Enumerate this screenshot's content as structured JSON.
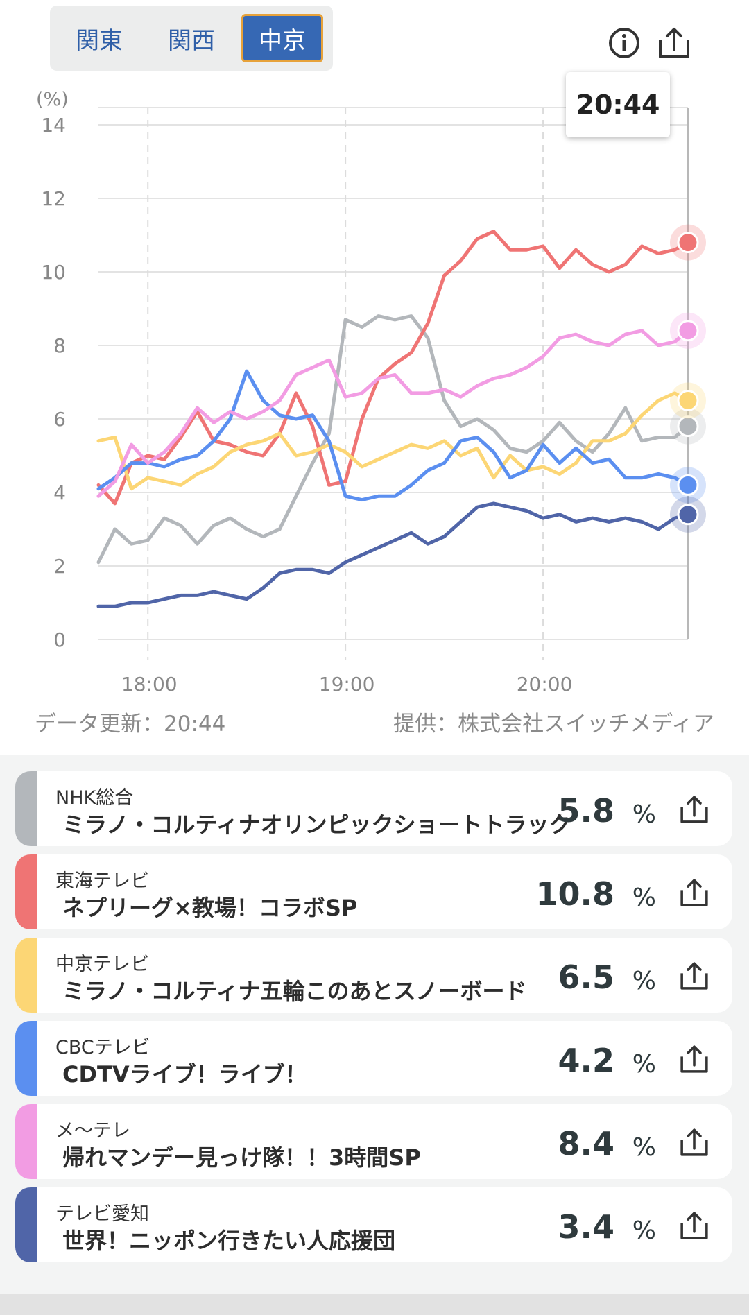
{
  "region_tabs": [
    {
      "label": "関東",
      "active": false
    },
    {
      "label": "関西",
      "active": false
    },
    {
      "label": "中京",
      "active": true
    }
  ],
  "header": {
    "info_icon": "info-icon",
    "share_icon": "share-icon"
  },
  "tooltip_time": "20:44",
  "colors": {
    "accent": "#3668b4",
    "tab_border": "#e7a23a"
  },
  "chart_data": {
    "type": "line",
    "ylabel": "(%)",
    "ylim": [
      0,
      14
    ],
    "yticks": [
      0,
      2,
      4,
      6,
      8,
      10,
      12,
      14
    ],
    "x_range": [
      "17:45",
      "20:44"
    ],
    "xticks": [
      {
        "time": "18:00",
        "label": "18:00"
      },
      {
        "time": "19:00",
        "label": "19:00"
      },
      {
        "time": "20:00",
        "label": "20:00"
      }
    ],
    "grid": true,
    "cursor_time": "20:44",
    "series": [
      {
        "name": "NHK総合",
        "color": "#b3b7bb",
        "points": [
          [
            "17:45",
            2.1
          ],
          [
            "17:50",
            3.0
          ],
          [
            "17:55",
            2.6
          ],
          [
            "18:00",
            2.7
          ],
          [
            "18:05",
            3.3
          ],
          [
            "18:10",
            3.1
          ],
          [
            "18:15",
            2.6
          ],
          [
            "18:20",
            3.1
          ],
          [
            "18:25",
            3.3
          ],
          [
            "18:30",
            3.0
          ],
          [
            "18:35",
            2.8
          ],
          [
            "18:40",
            3.0
          ],
          [
            "18:45",
            3.9
          ],
          [
            "18:50",
            4.8
          ],
          [
            "18:55",
            5.6
          ],
          [
            "19:00",
            8.7
          ],
          [
            "19:05",
            8.5
          ],
          [
            "19:10",
            8.8
          ],
          [
            "19:15",
            8.7
          ],
          [
            "19:20",
            8.8
          ],
          [
            "19:25",
            8.2
          ],
          [
            "19:30",
            6.5
          ],
          [
            "19:35",
            5.8
          ],
          [
            "19:40",
            6.0
          ],
          [
            "19:45",
            5.7
          ],
          [
            "19:50",
            5.2
          ],
          [
            "19:55",
            5.1
          ],
          [
            "20:00",
            5.4
          ],
          [
            "20:05",
            5.9
          ],
          [
            "20:10",
            5.4
          ],
          [
            "20:15",
            5.1
          ],
          [
            "20:20",
            5.6
          ],
          [
            "20:25",
            6.3
          ],
          [
            "20:30",
            5.4
          ],
          [
            "20:35",
            5.5
          ],
          [
            "20:40",
            5.5
          ],
          [
            "20:44",
            5.8
          ]
        ]
      },
      {
        "name": "東海テレビ",
        "color": "#ef7474",
        "points": [
          [
            "17:45",
            4.2
          ],
          [
            "17:50",
            3.7
          ],
          [
            "17:55",
            4.8
          ],
          [
            "18:00",
            5.0
          ],
          [
            "18:05",
            4.9
          ],
          [
            "18:10",
            5.5
          ],
          [
            "18:15",
            6.2
          ],
          [
            "18:20",
            5.4
          ],
          [
            "18:25",
            5.3
          ],
          [
            "18:30",
            5.1
          ],
          [
            "18:35",
            5.0
          ],
          [
            "18:40",
            5.6
          ],
          [
            "18:45",
            6.7
          ],
          [
            "18:50",
            5.8
          ],
          [
            "18:55",
            4.2
          ],
          [
            "19:00",
            4.3
          ],
          [
            "19:05",
            6.0
          ],
          [
            "19:10",
            7.1
          ],
          [
            "19:15",
            7.5
          ],
          [
            "19:20",
            7.8
          ],
          [
            "19:25",
            8.6
          ],
          [
            "19:30",
            9.9
          ],
          [
            "19:35",
            10.3
          ],
          [
            "19:40",
            10.9
          ],
          [
            "19:45",
            11.1
          ],
          [
            "19:50",
            10.6
          ],
          [
            "19:55",
            10.6
          ],
          [
            "20:00",
            10.7
          ],
          [
            "20:05",
            10.1
          ],
          [
            "20:10",
            10.6
          ],
          [
            "20:15",
            10.2
          ],
          [
            "20:20",
            10.0
          ],
          [
            "20:25",
            10.2
          ],
          [
            "20:30",
            10.7
          ],
          [
            "20:35",
            10.5
          ],
          [
            "20:40",
            10.6
          ],
          [
            "20:44",
            10.8
          ]
        ]
      },
      {
        "name": "中京テレビ",
        "color": "#fcd675",
        "points": [
          [
            "17:45",
            5.4
          ],
          [
            "17:50",
            5.5
          ],
          [
            "17:55",
            4.1
          ],
          [
            "18:00",
            4.4
          ],
          [
            "18:05",
            4.3
          ],
          [
            "18:10",
            4.2
          ],
          [
            "18:15",
            4.5
          ],
          [
            "18:20",
            4.7
          ],
          [
            "18:25",
            5.1
          ],
          [
            "18:30",
            5.3
          ],
          [
            "18:35",
            5.4
          ],
          [
            "18:40",
            5.6
          ],
          [
            "18:45",
            5.0
          ],
          [
            "18:50",
            5.1
          ],
          [
            "18:55",
            5.3
          ],
          [
            "19:00",
            5.1
          ],
          [
            "19:05",
            4.7
          ],
          [
            "19:10",
            4.9
          ],
          [
            "19:15",
            5.1
          ],
          [
            "19:20",
            5.3
          ],
          [
            "19:25",
            5.2
          ],
          [
            "19:30",
            5.4
          ],
          [
            "19:35",
            5.0
          ],
          [
            "19:40",
            5.2
          ],
          [
            "19:45",
            4.4
          ],
          [
            "19:50",
            5.0
          ],
          [
            "19:55",
            4.6
          ],
          [
            "20:00",
            4.7
          ],
          [
            "20:05",
            4.5
          ],
          [
            "20:10",
            4.8
          ],
          [
            "20:15",
            5.4
          ],
          [
            "20:20",
            5.4
          ],
          [
            "20:25",
            5.6
          ],
          [
            "20:30",
            6.1
          ],
          [
            "20:35",
            6.5
          ],
          [
            "20:40",
            6.7
          ],
          [
            "20:44",
            6.5
          ]
        ]
      },
      {
        "name": "CBCテレビ",
        "color": "#5b8ff0",
        "points": [
          [
            "17:45",
            4.1
          ],
          [
            "17:50",
            4.4
          ],
          [
            "17:55",
            4.8
          ],
          [
            "18:00",
            4.8
          ],
          [
            "18:05",
            4.7
          ],
          [
            "18:10",
            4.9
          ],
          [
            "18:15",
            5.0
          ],
          [
            "18:20",
            5.4
          ],
          [
            "18:25",
            6.0
          ],
          [
            "18:30",
            7.3
          ],
          [
            "18:35",
            6.5
          ],
          [
            "18:40",
            6.1
          ],
          [
            "18:45",
            6.0
          ],
          [
            "18:50",
            6.1
          ],
          [
            "18:55",
            5.4
          ],
          [
            "19:00",
            3.9
          ],
          [
            "19:05",
            3.8
          ],
          [
            "19:10",
            3.9
          ],
          [
            "19:15",
            3.9
          ],
          [
            "19:20",
            4.2
          ],
          [
            "19:25",
            4.6
          ],
          [
            "19:30",
            4.8
          ],
          [
            "19:35",
            5.4
          ],
          [
            "19:40",
            5.5
          ],
          [
            "19:45",
            5.1
          ],
          [
            "19:50",
            4.4
          ],
          [
            "19:55",
            4.6
          ],
          [
            "20:00",
            5.3
          ],
          [
            "20:05",
            4.8
          ],
          [
            "20:10",
            5.2
          ],
          [
            "20:15",
            4.8
          ],
          [
            "20:20",
            4.9
          ],
          [
            "20:25",
            4.4
          ],
          [
            "20:30",
            4.4
          ],
          [
            "20:35",
            4.5
          ],
          [
            "20:40",
            4.4
          ],
          [
            "20:44",
            4.2
          ]
        ]
      },
      {
        "name": "メ〜テレ",
        "color": "#f29ce3",
        "points": [
          [
            "17:45",
            3.9
          ],
          [
            "17:50",
            4.3
          ],
          [
            "17:55",
            5.3
          ],
          [
            "18:00",
            4.8
          ],
          [
            "18:05",
            5.1
          ],
          [
            "18:10",
            5.6
          ],
          [
            "18:15",
            6.3
          ],
          [
            "18:20",
            5.9
          ],
          [
            "18:25",
            6.2
          ],
          [
            "18:30",
            6.0
          ],
          [
            "18:35",
            6.2
          ],
          [
            "18:40",
            6.5
          ],
          [
            "18:45",
            7.2
          ],
          [
            "18:50",
            7.4
          ],
          [
            "18:55",
            7.6
          ],
          [
            "19:00",
            6.6
          ],
          [
            "19:05",
            6.7
          ],
          [
            "19:10",
            7.1
          ],
          [
            "19:15",
            7.2
          ],
          [
            "19:20",
            6.7
          ],
          [
            "19:25",
            6.7
          ],
          [
            "19:30",
            6.8
          ],
          [
            "19:35",
            6.6
          ],
          [
            "19:40",
            6.9
          ],
          [
            "19:45",
            7.1
          ],
          [
            "19:50",
            7.2
          ],
          [
            "19:55",
            7.4
          ],
          [
            "20:00",
            7.7
          ],
          [
            "20:05",
            8.2
          ],
          [
            "20:10",
            8.3
          ],
          [
            "20:15",
            8.1
          ],
          [
            "20:20",
            8.0
          ],
          [
            "20:25",
            8.3
          ],
          [
            "20:30",
            8.4
          ],
          [
            "20:35",
            8.0
          ],
          [
            "20:40",
            8.1
          ],
          [
            "20:44",
            8.4
          ]
        ]
      },
      {
        "name": "テレビ愛知",
        "color": "#5065a8",
        "points": [
          [
            "17:45",
            0.9
          ],
          [
            "17:50",
            0.9
          ],
          [
            "17:55",
            1.0
          ],
          [
            "18:00",
            1.0
          ],
          [
            "18:05",
            1.1
          ],
          [
            "18:10",
            1.2
          ],
          [
            "18:15",
            1.2
          ],
          [
            "18:20",
            1.3
          ],
          [
            "18:25",
            1.2
          ],
          [
            "18:30",
            1.1
          ],
          [
            "18:35",
            1.4
          ],
          [
            "18:40",
            1.8
          ],
          [
            "18:45",
            1.9
          ],
          [
            "18:50",
            1.9
          ],
          [
            "18:55",
            1.8
          ],
          [
            "19:00",
            2.1
          ],
          [
            "19:05",
            2.3
          ],
          [
            "19:10",
            2.5
          ],
          [
            "19:15",
            2.7
          ],
          [
            "19:20",
            2.9
          ],
          [
            "19:25",
            2.6
          ],
          [
            "19:30",
            2.8
          ],
          [
            "19:35",
            3.2
          ],
          [
            "19:40",
            3.6
          ],
          [
            "19:45",
            3.7
          ],
          [
            "19:50",
            3.6
          ],
          [
            "19:55",
            3.5
          ],
          [
            "20:00",
            3.3
          ],
          [
            "20:05",
            3.4
          ],
          [
            "20:10",
            3.2
          ],
          [
            "20:15",
            3.3
          ],
          [
            "20:20",
            3.2
          ],
          [
            "20:25",
            3.3
          ],
          [
            "20:30",
            3.2
          ],
          [
            "20:35",
            3.0
          ],
          [
            "20:40",
            3.3
          ],
          [
            "20:44",
            3.4
          ]
        ]
      }
    ]
  },
  "update_label": "データ更新：20:44",
  "source_label": "提供：株式会社スイッチメディア",
  "ratings": [
    {
      "channel": "NHK総合",
      "program": "ミラノ・コルティナオリンピックショートトラック",
      "value": "5.8",
      "unit": "%",
      "color": "#b3b7bb"
    },
    {
      "channel": "東海テレビ",
      "program": "ネプリーグ×教場！コラボSP",
      "value": "10.8",
      "unit": "%",
      "color": "#ef7474"
    },
    {
      "channel": "中京テレビ",
      "program": "ミラノ・コルティナ五輪このあとスノーボード",
      "value": "6.5",
      "unit": "%",
      "color": "#fcd675"
    },
    {
      "channel": "CBCテレビ",
      "program": "CDTVライブ！ライブ！",
      "value": "4.2",
      "unit": "%",
      "color": "#5b8ff0"
    },
    {
      "channel": "メ〜テレ",
      "program": "帰れマンデー見っけ隊！！3時間SP",
      "value": "8.4",
      "unit": "%",
      "color": "#f29ce3"
    },
    {
      "channel": "テレビ愛知",
      "program": "世界！ニッポン行きたい人応援団",
      "value": "3.4",
      "unit": "%",
      "color": "#5065a8"
    }
  ]
}
